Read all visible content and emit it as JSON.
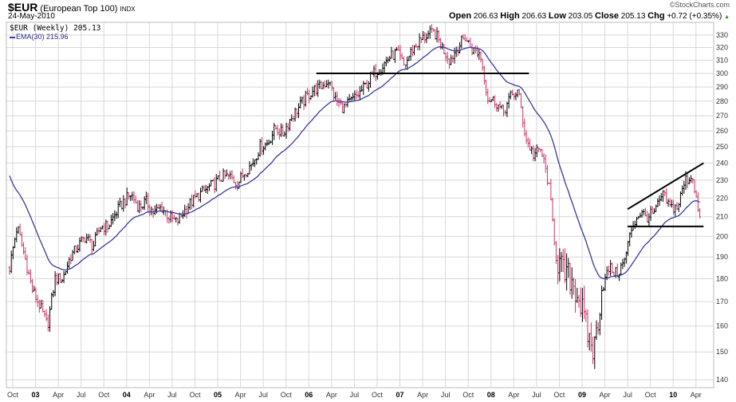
{
  "header": {
    "symbol": "$EUR",
    "name": "(European Top 100)",
    "exchange": "INDX",
    "date": "24-May-2010",
    "copyright": "©StockCharts.com",
    "open_label": "Open",
    "open": "206.63",
    "high_label": "High",
    "high": "206.63",
    "low_label": "Low",
    "low": "203.05",
    "close_label": "Close",
    "close": "205.13",
    "chg_label": "Chg",
    "chg": "+0.72 (+0.35%)",
    "chg_arrow": "▲"
  },
  "legend": {
    "price": "$EUR (Weekly) 205.13",
    "ema": "EMA(30) 215.96"
  },
  "colors": {
    "up": "#000000",
    "down": "#d0306a",
    "ema": "#3a3a9a",
    "grid": "#d8d8d8",
    "trendline": "#000000"
  },
  "chart_data": {
    "type": "ohlc-bar",
    "title": "$EUR (European Top 100) INDX weekly",
    "scale": "log",
    "ylim": [
      137,
      338
    ],
    "y_ticks": [
      140,
      150,
      160,
      170,
      180,
      190,
      200,
      210,
      220,
      230,
      240,
      250,
      260,
      270,
      280,
      290,
      300,
      310,
      320,
      330
    ],
    "x_ticks": [
      "Oct",
      "03",
      "Apr",
      "Jul",
      "Oct",
      "04",
      "Apr",
      "Jul",
      "Oct",
      "05",
      "Apr",
      "Jul",
      "Oct",
      "06",
      "Apr",
      "Jul",
      "Oct",
      "07",
      "Apr",
      "Jul",
      "Oct",
      "08",
      "Apr",
      "Jul",
      "Oct",
      "09",
      "Apr",
      "Jul",
      "Oct",
      "10",
      "Apr"
    ],
    "start_month": "2002-10",
    "monthly_close": [
      185,
      205,
      190,
      175,
      168,
      160,
      180,
      180,
      190,
      195,
      200,
      195,
      205,
      205,
      212,
      218,
      222,
      215,
      218,
      212,
      215,
      210,
      207,
      213,
      218,
      222,
      225,
      228,
      232,
      232,
      228,
      235,
      240,
      250,
      252,
      262,
      258,
      268,
      275,
      282,
      288,
      290,
      295,
      280,
      275,
      280,
      285,
      292,
      300,
      305,
      312,
      316,
      305,
      318,
      325,
      330,
      332,
      320,
      310,
      320,
      328,
      318,
      315,
      282,
      280,
      272,
      283,
      287,
      255,
      245,
      248,
      228,
      190,
      182,
      180,
      172,
      158,
      150,
      175,
      185,
      182,
      188,
      205,
      212,
      210,
      212,
      222,
      215,
      215,
      230,
      232,
      205
    ],
    "ema_period": 30,
    "ema_seed": 236,
    "last_ema": 215.96,
    "trendlines": [
      {
        "from": [
          "2006-02",
          300
        ],
        "to": [
          "2008-06",
          300
        ]
      },
      {
        "from": [
          "2009-07",
          205
        ],
        "to": [
          "2010-05",
          205
        ]
      },
      {
        "from": [
          "2009-07",
          214
        ],
        "to": [
          "2010-05",
          240
        ]
      }
    ]
  }
}
